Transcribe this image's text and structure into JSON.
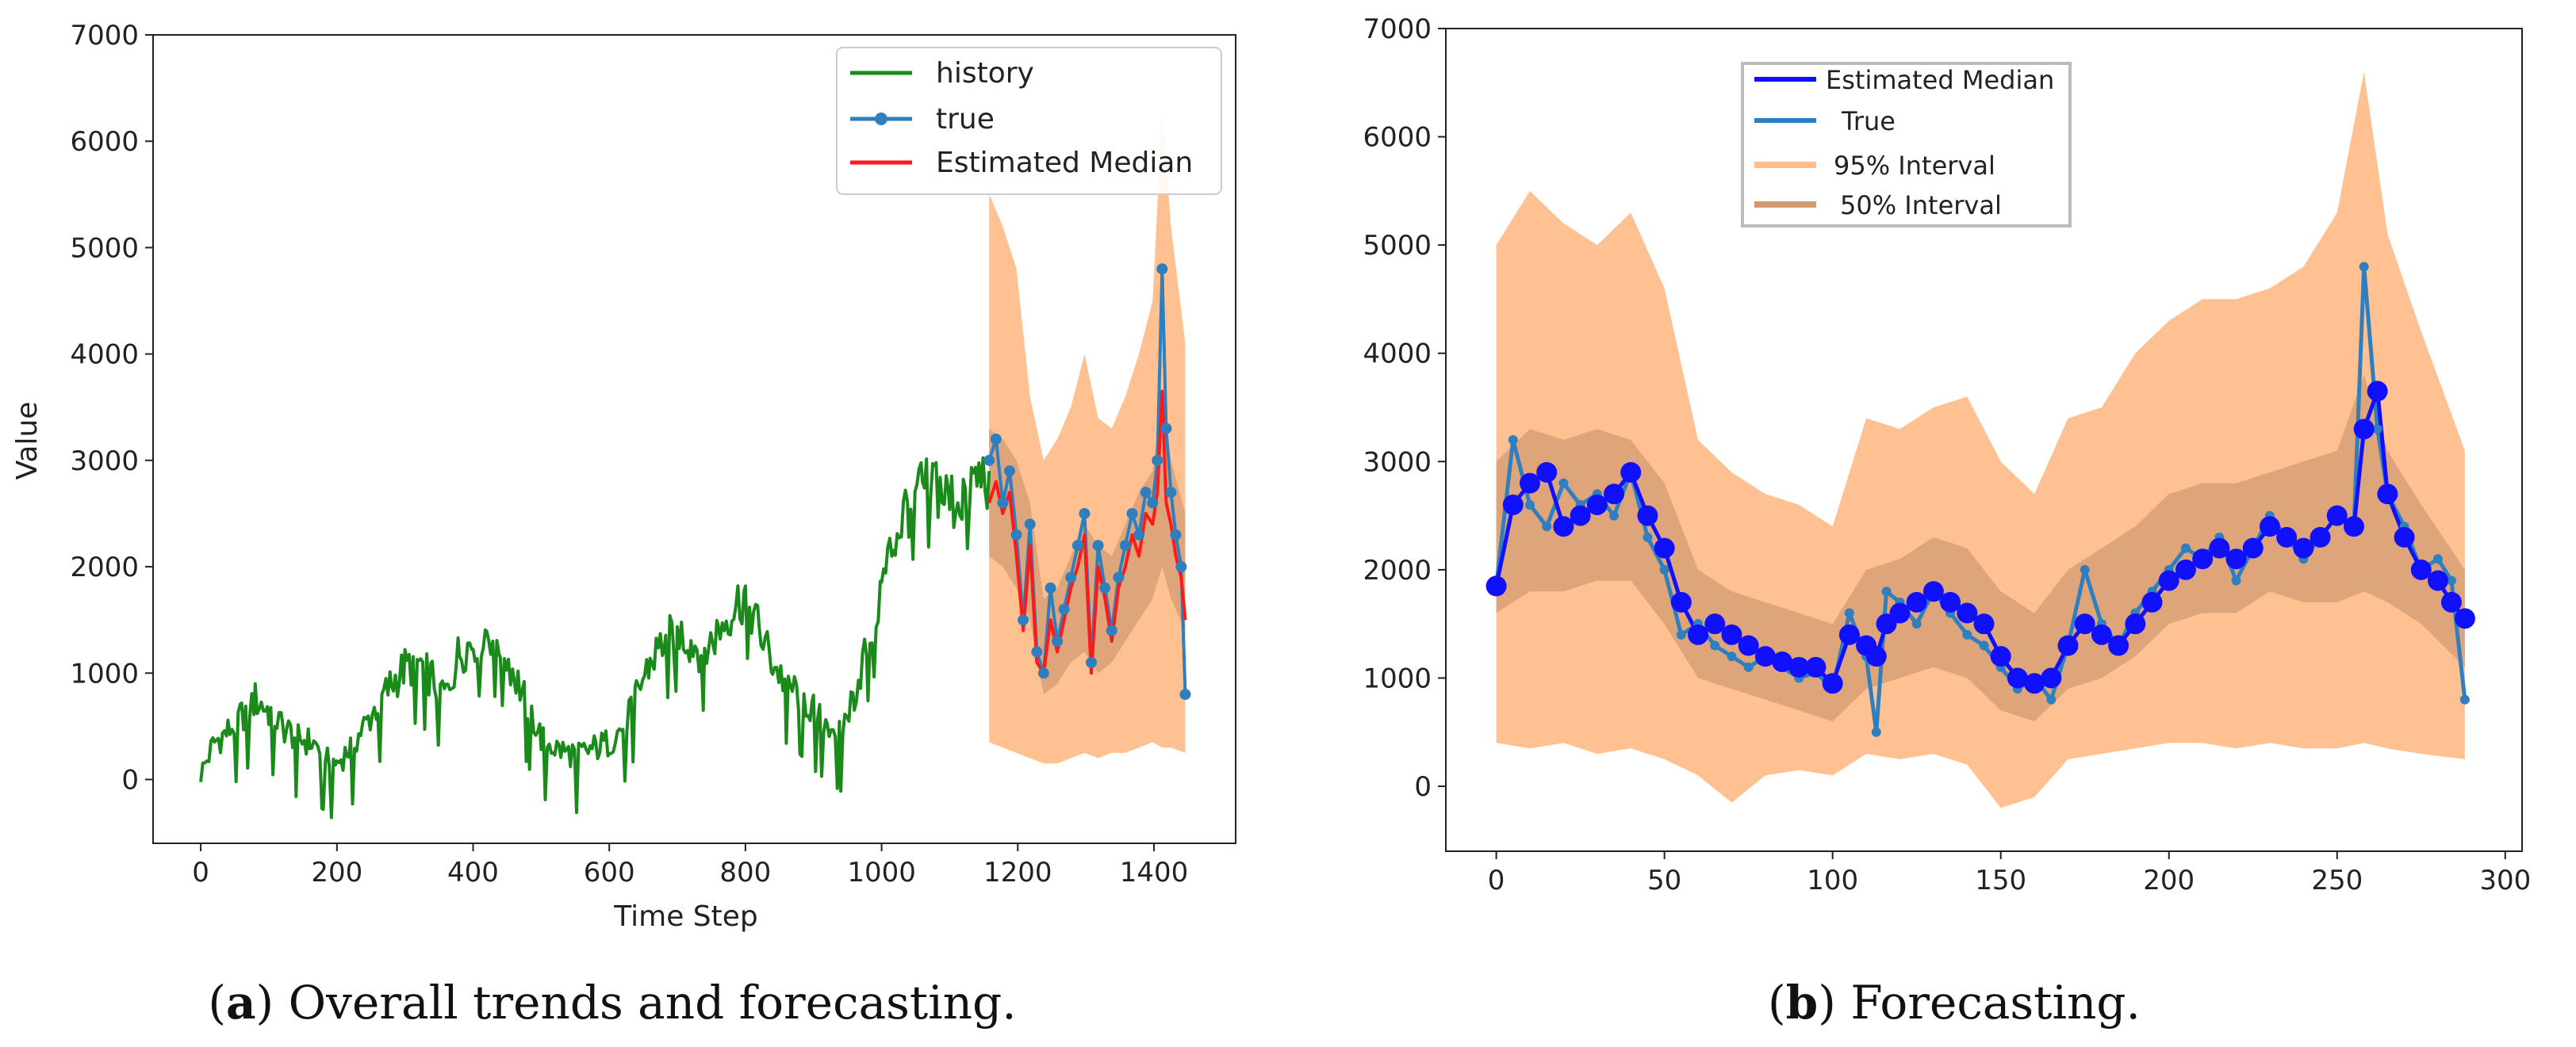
{
  "chart_data": [
    {
      "type": "line",
      "panel_label": "a",
      "caption": "Overall trends and forecasting.",
      "xlabel": "Time Step",
      "ylabel": "Value",
      "xlim": [
        -70,
        1520
      ],
      "ylim": [
        -600,
        7000
      ],
      "xticks": [
        0,
        200,
        400,
        600,
        800,
        1000,
        1200,
        1400
      ],
      "yticks": [
        0,
        1000,
        2000,
        3000,
        4000,
        5000,
        6000,
        7000
      ],
      "legend_position": "top-right",
      "legend": [
        {
          "label": "history",
          "color": "#1a8a1a",
          "marker": false
        },
        {
          "label": "true",
          "color": "#2f7fbf",
          "marker": true
        },
        {
          "label": "Estimated Median",
          "color": "#ff1a1a",
          "marker": false
        }
      ],
      "series": [
        {
          "name": "history",
          "color": "#1a8a1a",
          "x": [
            0,
            20,
            40,
            60,
            80,
            100,
            120,
            140,
            160,
            180,
            200,
            220,
            240,
            260,
            280,
            300,
            320,
            340,
            360,
            380,
            400,
            420,
            440,
            460,
            480,
            500,
            520,
            540,
            560,
            580,
            600,
            620,
            640,
            660,
            680,
            700,
            720,
            740,
            760,
            780,
            800,
            820,
            840,
            860,
            880,
            900,
            920,
            940,
            960,
            980,
            1000,
            1020,
            1040,
            1060,
            1080,
            1100,
            1120,
            1140,
            1158
          ],
          "y": [
            50,
            350,
            450,
            600,
            750,
            650,
            500,
            400,
            350,
            280,
            150,
            300,
            500,
            700,
            900,
            1050,
            1100,
            950,
            800,
            1200,
            1300,
            1400,
            1300,
            1000,
            700,
            400,
            300,
            250,
            250,
            300,
            350,
            500,
            800,
            1100,
            1300,
            1400,
            1300,
            1200,
            1400,
            1600,
            1750,
            1400,
            1100,
            900,
            800,
            650,
            550,
            450,
            800,
            1300,
            1800,
            2300,
            2600,
            2700,
            2800,
            2600,
            2700,
            2800,
            2900
          ]
        },
        {
          "name": "true",
          "color": "#2f7fbf",
          "x": [
            1158,
            1168,
            1178,
            1188,
            1198,
            1208,
            1218,
            1228,
            1238,
            1248,
            1258,
            1268,
            1278,
            1288,
            1298,
            1308,
            1318,
            1328,
            1338,
            1348,
            1358,
            1368,
            1378,
            1388,
            1398,
            1405,
            1412,
            1418,
            1425,
            1432,
            1440,
            1446
          ],
          "y": [
            3000,
            3200,
            2600,
            2900,
            2300,
            1500,
            2400,
            1200,
            1000,
            1800,
            1300,
            1600,
            1900,
            2200,
            2500,
            1100,
            2200,
            1800,
            1400,
            1900,
            2200,
            2500,
            2300,
            2700,
            2600,
            3000,
            4800,
            3300,
            2700,
            2300,
            2000,
            800
          ]
        },
        {
          "name": "Estimated Median",
          "color": "#ff1a1a",
          "x": [
            1158,
            1168,
            1178,
            1188,
            1198,
            1208,
            1218,
            1228,
            1238,
            1248,
            1258,
            1268,
            1278,
            1288,
            1298,
            1308,
            1318,
            1328,
            1338,
            1348,
            1358,
            1368,
            1378,
            1388,
            1398,
            1405,
            1412,
            1418,
            1425,
            1432,
            1440,
            1446
          ],
          "y": [
            2600,
            2800,
            2500,
            2700,
            2100,
            1400,
            2200,
            1100,
            1000,
            1500,
            1200,
            1500,
            1800,
            2000,
            2300,
            1000,
            2000,
            1700,
            1300,
            1800,
            2000,
            2300,
            2100,
            2500,
            2400,
            2700,
            3650,
            2600,
            2400,
            2100,
            1900,
            1500
          ]
        }
      ],
      "bands": [
        {
          "name": "95% Interval",
          "color": "#ffbe8c",
          "x": [
            1158,
            1178,
            1198,
            1218,
            1238,
            1258,
            1278,
            1298,
            1318,
            1338,
            1358,
            1378,
            1398,
            1412,
            1425,
            1446
          ],
          "low": [
            350,
            300,
            250,
            200,
            150,
            150,
            200,
            250,
            200,
            250,
            250,
            300,
            350,
            300,
            300,
            250
          ],
          "high": [
            5500,
            5200,
            4800,
            3600,
            3000,
            3200,
            3500,
            4000,
            3400,
            3300,
            3600,
            4000,
            4500,
            6300,
            5200,
            4100
          ]
        },
        {
          "name": "50% Interval",
          "color": "#d49b72",
          "x": [
            1158,
            1178,
            1198,
            1218,
            1238,
            1258,
            1278,
            1298,
            1318,
            1338,
            1358,
            1378,
            1398,
            1412,
            1425,
            1446
          ],
          "low": [
            2100,
            2000,
            1800,
            1500,
            800,
            900,
            1100,
            1200,
            1000,
            1100,
            1300,
            1500,
            1700,
            2000,
            1700,
            1400
          ],
          "high": [
            3300,
            3200,
            3000,
            2600,
            1700,
            1800,
            2100,
            2400,
            2200,
            2100,
            2400,
            2700,
            2900,
            3600,
            3000,
            2500
          ]
        }
      ]
    },
    {
      "type": "line",
      "panel_label": "b",
      "caption": "Forecasting.",
      "xlabel": "",
      "ylabel": "",
      "xlim": [
        -15,
        305
      ],
      "ylim": [
        -600,
        7000
      ],
      "xticks": [
        0,
        50,
        100,
        150,
        200,
        250,
        300
      ],
      "yticks": [
        0,
        1000,
        2000,
        3000,
        4000,
        5000,
        6000,
        7000
      ],
      "legend_position": "top-center",
      "legend": [
        {
          "label": "Estimated Median",
          "color": "#1010ff"
        },
        {
          "label": "True",
          "color": "#2f7fbf"
        },
        {
          "label": "95% Interval",
          "color": "#ffbe8c"
        },
        {
          "label": "50% Interval",
          "color": "#d49b72"
        }
      ],
      "series": [
        {
          "name": "True",
          "color": "#2f7fbf",
          "x": [
            0,
            5,
            10,
            15,
            20,
            25,
            30,
            35,
            40,
            45,
            50,
            55,
            60,
            65,
            70,
            75,
            80,
            85,
            90,
            95,
            100,
            105,
            110,
            113,
            116,
            120,
            125,
            130,
            135,
            140,
            145,
            150,
            155,
            160,
            165,
            170,
            175,
            180,
            185,
            190,
            195,
            200,
            205,
            210,
            215,
            220,
            225,
            230,
            235,
            240,
            245,
            250,
            255,
            258,
            262,
            265,
            270,
            275,
            280,
            284,
            288
          ],
          "y": [
            1850,
            3200,
            2600,
            2400,
            2800,
            2600,
            2700,
            2500,
            2900,
            2300,
            2000,
            1400,
            1500,
            1300,
            1200,
            1100,
            1200,
            1100,
            1000,
            1050,
            900,
            1600,
            1200,
            500,
            1800,
            1700,
            1500,
            1800,
            1600,
            1400,
            1300,
            1100,
            900,
            1000,
            800,
            1300,
            2000,
            1500,
            1300,
            1600,
            1800,
            2000,
            2200,
            2100,
            2300,
            1900,
            2200,
            2500,
            2300,
            2100,
            2300,
            2500,
            2400,
            4800,
            3300,
            2700,
            2400,
            2000,
            2100,
            1900,
            800
          ]
        },
        {
          "name": "Estimated Median",
          "color": "#1010ff",
          "x": [
            0,
            5,
            10,
            15,
            20,
            25,
            30,
            35,
            40,
            45,
            50,
            55,
            60,
            65,
            70,
            75,
            80,
            85,
            90,
            95,
            100,
            105,
            110,
            113,
            116,
            120,
            125,
            130,
            135,
            140,
            145,
            150,
            155,
            160,
            165,
            170,
            175,
            180,
            185,
            190,
            195,
            200,
            205,
            210,
            215,
            220,
            225,
            230,
            235,
            240,
            245,
            250,
            255,
            258,
            262,
            265,
            270,
            275,
            280,
            284,
            288
          ],
          "y": [
            1850,
            2600,
            2800,
            2900,
            2400,
            2500,
            2600,
            2700,
            2900,
            2500,
            2200,
            1700,
            1400,
            1500,
            1400,
            1300,
            1200,
            1150,
            1100,
            1100,
            950,
            1400,
            1300,
            1200,
            1500,
            1600,
            1700,
            1800,
            1700,
            1600,
            1500,
            1200,
            1000,
            950,
            1000,
            1300,
            1500,
            1400,
            1300,
            1500,
            1700,
            1900,
            2000,
            2100,
            2200,
            2100,
            2200,
            2400,
            2300,
            2200,
            2300,
            2500,
            2400,
            3300,
            3650,
            2700,
            2300,
            2000,
            1900,
            1700,
            1550
          ]
        }
      ],
      "bands": [
        {
          "name": "95% Interval",
          "color": "#ffbe8c",
          "x": [
            0,
            10,
            20,
            30,
            40,
            50,
            60,
            70,
            80,
            90,
            100,
            110,
            120,
            130,
            140,
            150,
            160,
            170,
            180,
            190,
            200,
            210,
            220,
            230,
            240,
            250,
            258,
            265,
            275,
            288
          ],
          "low": [
            400,
            350,
            400,
            300,
            350,
            250,
            100,
            -150,
            100,
            150,
            100,
            300,
            250,
            300,
            200,
            -200,
            -100,
            250,
            300,
            350,
            400,
            400,
            350,
            400,
            350,
            350,
            400,
            350,
            300,
            250
          ],
          "high": [
            5000,
            5500,
            5200,
            5000,
            5300,
            4600,
            3200,
            2900,
            2700,
            2600,
            2400,
            3400,
            3300,
            3500,
            3600,
            3000,
            2700,
            3400,
            3500,
            4000,
            4300,
            4500,
            4500,
            4600,
            4800,
            5300,
            6600,
            5100,
            4200,
            3100
          ]
        },
        {
          "name": "50% Interval",
          "color": "#d49b72",
          "x": [
            0,
            10,
            20,
            30,
            40,
            50,
            60,
            70,
            80,
            90,
            100,
            110,
            120,
            130,
            140,
            150,
            160,
            170,
            180,
            190,
            200,
            210,
            220,
            230,
            240,
            250,
            258,
            265,
            275,
            288
          ],
          "low": [
            1600,
            1800,
            1800,
            1900,
            1900,
            1500,
            1000,
            900,
            800,
            700,
            600,
            900,
            1000,
            1100,
            1000,
            700,
            600,
            900,
            1000,
            1200,
            1500,
            1600,
            1600,
            1800,
            1700,
            1700,
            1800,
            1700,
            1500,
            1100
          ],
          "high": [
            3000,
            3300,
            3200,
            3300,
            3200,
            2800,
            2000,
            1800,
            1700,
            1600,
            1500,
            2000,
            2100,
            2300,
            2200,
            1800,
            1600,
            2000,
            2200,
            2400,
            2700,
            2800,
            2800,
            2900,
            3000,
            3100,
            3800,
            3100,
            2600,
            2000
          ]
        }
      ]
    }
  ]
}
